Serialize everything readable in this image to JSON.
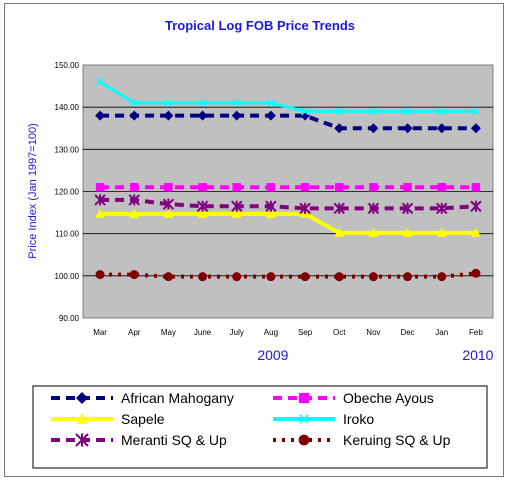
{
  "chart_data": {
    "type": "line",
    "title": "Tropical Log FOB Price Trends",
    "ylabel": "Price Index (Jan 1997=100)",
    "xlabel": "",
    "ylim": [
      90,
      150
    ],
    "yticks": [
      "90.00",
      "100.00",
      "110.00",
      "120.00",
      "130.00",
      "140.00",
      "150.00"
    ],
    "categories": [
      "Mar",
      "Apr",
      "May",
      "June",
      "July",
      "Aug",
      "Sep",
      "Oct",
      "Nov",
      "Dec",
      "Jan",
      "Feb"
    ],
    "year_labels": [
      {
        "text": "2009",
        "category": "Aug"
      },
      {
        "text": "2010",
        "category": "Feb"
      }
    ],
    "grid": "horizontal",
    "plot_background": "#c0c0c0",
    "legend_position": "bottom",
    "series": [
      {
        "name": "African Mahogany",
        "color": "#000080",
        "marker": "diamond",
        "dash": "dashed",
        "values": [
          138,
          138,
          138,
          138,
          138,
          138,
          138,
          135,
          135,
          135,
          135,
          135
        ]
      },
      {
        "name": "Obeche Ayous",
        "color": "#ff00ff",
        "marker": "square",
        "dash": "dashed",
        "values": [
          121,
          121,
          121,
          121,
          121,
          121,
          121,
          121,
          121,
          121,
          121,
          121
        ]
      },
      {
        "name": "Sapele",
        "color": "#ffff00",
        "marker": "triangle",
        "dash": "solid",
        "values": [
          114.7,
          114.7,
          114.7,
          114.7,
          114.7,
          114.7,
          114.7,
          110.2,
          110.2,
          110.2,
          110.2,
          110.2
        ]
      },
      {
        "name": "Iroko",
        "color": "#00ffff",
        "marker": "x",
        "dash": "solid",
        "values": [
          146,
          141,
          141,
          141,
          141,
          141,
          139,
          139,
          139,
          139,
          139,
          139
        ]
      },
      {
        "name": "Meranti SQ & Up",
        "color": "#800080",
        "marker": "asterisk",
        "dash": "dashed",
        "values": [
          118,
          118,
          117,
          116.5,
          116.5,
          116.5,
          116,
          116,
          116,
          116,
          116,
          116.5
        ]
      },
      {
        "name": "Keruing SQ & Up",
        "color": "#800000",
        "marker": "circle",
        "dash": "dotted",
        "values": [
          100.3,
          100.3,
          99.8,
          99.8,
          99.8,
          99.8,
          99.8,
          99.8,
          99.8,
          99.8,
          99.8,
          100.6
        ]
      }
    ]
  }
}
